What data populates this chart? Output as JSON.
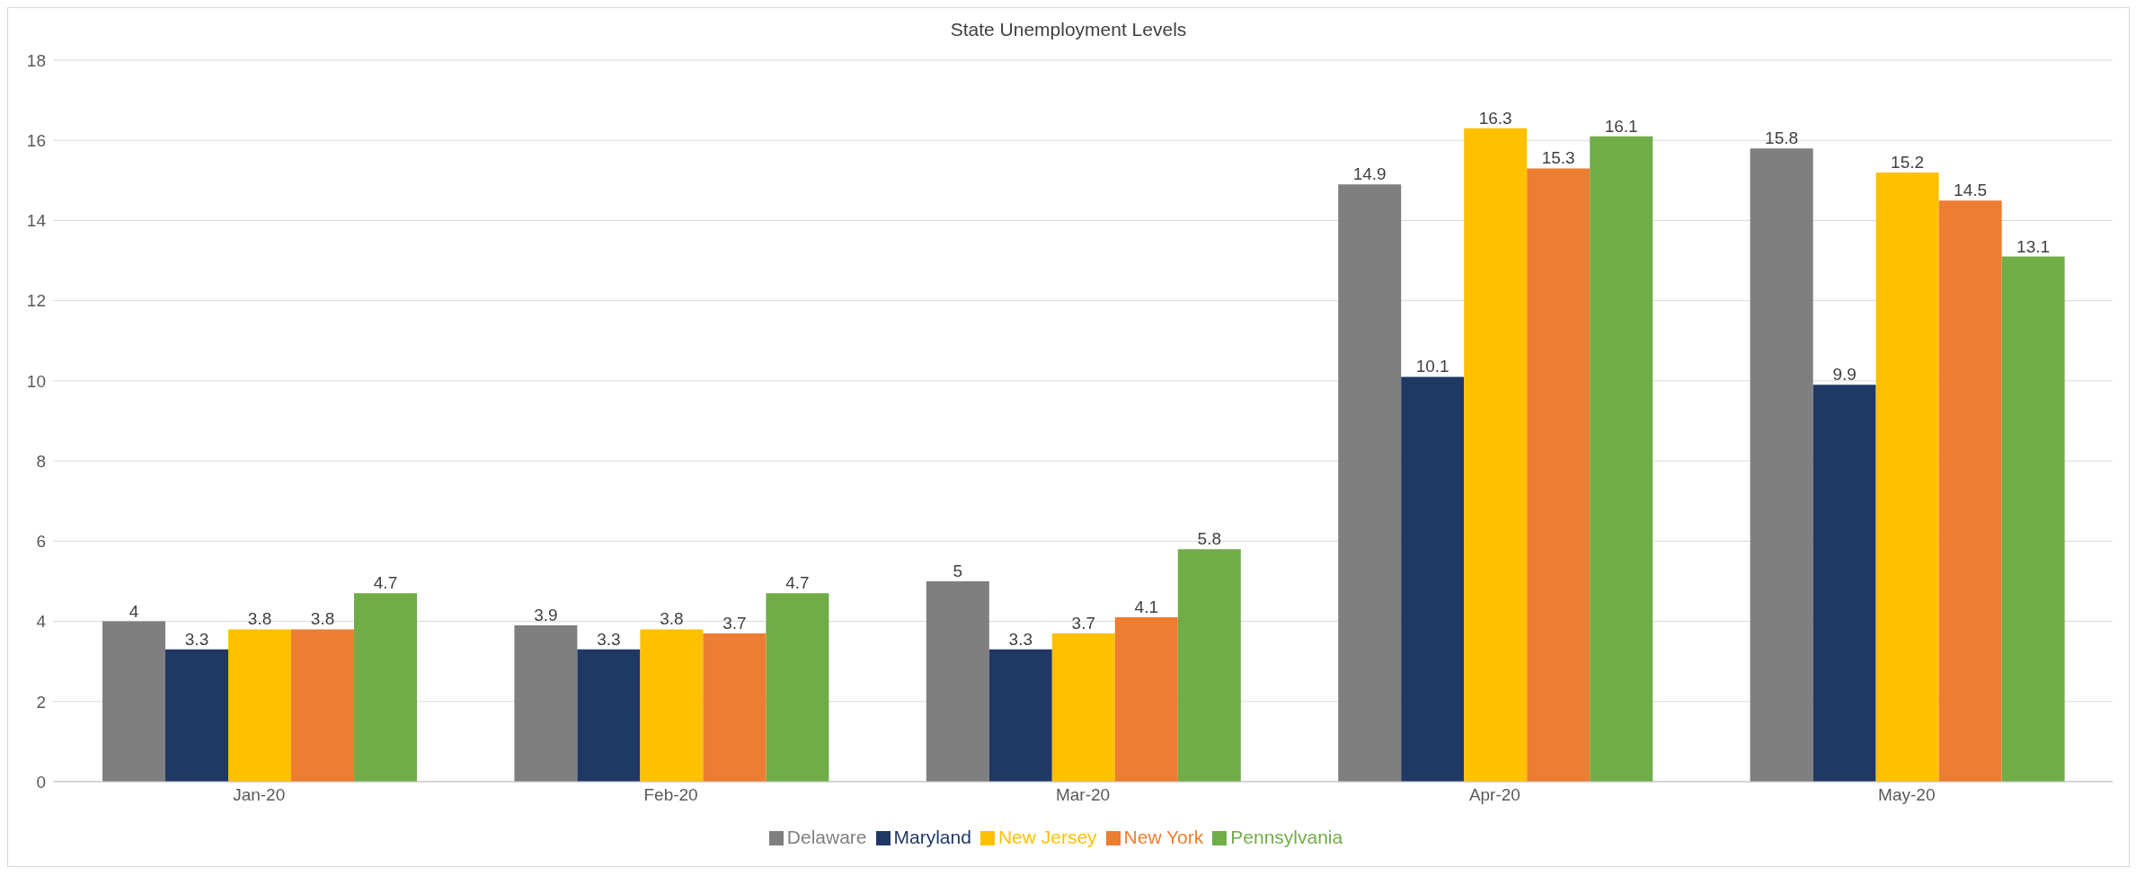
{
  "chart_data": {
    "type": "bar",
    "title": "State Unemployment Levels",
    "categories": [
      "Jan-20",
      "Feb-20",
      "Mar-20",
      "Apr-20",
      "May-20"
    ],
    "series": [
      {
        "name": "Delaware",
        "color": "#7f7f7f",
        "values": [
          4,
          3.9,
          5,
          14.9,
          15.8
        ]
      },
      {
        "name": "Maryland",
        "color": "#203864",
        "values": [
          3.3,
          3.3,
          3.3,
          10.1,
          9.9
        ]
      },
      {
        "name": "New Jersey",
        "color": "#ffc000",
        "values": [
          3.8,
          3.8,
          3.7,
          16.3,
          15.2
        ]
      },
      {
        "name": "New York",
        "color": "#ed7d31",
        "values": [
          3.8,
          3.7,
          4.1,
          15.3,
          14.5
        ]
      },
      {
        "name": "Pennsylvania",
        "color": "#70ad47",
        "values": [
          4.7,
          4.7,
          5.8,
          16.1,
          13.1
        ]
      }
    ],
    "ylim": [
      0,
      18
    ],
    "yticks": [
      0,
      2,
      4,
      6,
      8,
      10,
      12,
      14,
      16,
      18
    ],
    "grid": "y",
    "legend": "bottom",
    "data_labels": true
  }
}
